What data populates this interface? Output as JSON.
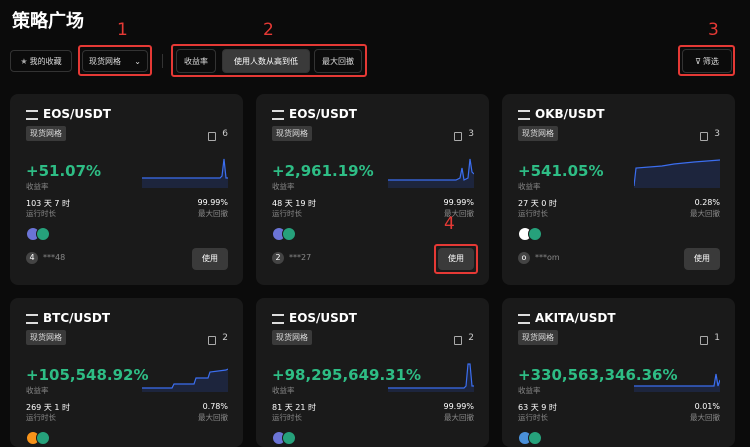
{
  "header": {
    "title": "策略广场"
  },
  "toolbar": {
    "favorites": "我的收藏",
    "dropdown": "现货网格",
    "sort_tabs": [
      "收益率",
      "使用人数从高到低",
      "最大回撤"
    ],
    "filter": "筛选"
  },
  "annotations": [
    "1",
    "2",
    "3",
    "4"
  ],
  "cards": [
    {
      "pair": "EOS/USDT",
      "tag": "现货网格",
      "copies": 6,
      "return": "+51.07%",
      "return_label": "收益率",
      "runtime": "103 天 7 时",
      "runtime_label": "运行时长",
      "drawdown": "99.99%",
      "drawdown_label": "最大回撤",
      "user_avatar": "4",
      "user": "***48",
      "button": "使用"
    },
    {
      "pair": "EOS/USDT",
      "tag": "现货网格",
      "copies": 3,
      "return": "+2,961.19%",
      "return_label": "收益率",
      "runtime": "48 天 19 时",
      "runtime_label": "运行时长",
      "drawdown": "99.99%",
      "drawdown_label": "最大回撤",
      "user_avatar": "2",
      "user": "***27",
      "button": "使用"
    },
    {
      "pair": "OKB/USDT",
      "tag": "现货网格",
      "copies": 3,
      "return": "+541.05%",
      "return_label": "收益率",
      "runtime": "27 天 0 时",
      "runtime_label": "运行时长",
      "drawdown": "0.28%",
      "drawdown_label": "最大回撤",
      "user_avatar": "o",
      "user": "***om",
      "button": "使用"
    },
    {
      "pair": "BTC/USDT",
      "tag": "现货网格",
      "copies": 2,
      "return": "+105,548.92%",
      "return_label": "收益率",
      "runtime": "269 天 1 时",
      "runtime_label": "运行时长",
      "drawdown": "0.78%",
      "drawdown_label": "最大回撤"
    },
    {
      "pair": "EOS/USDT",
      "tag": "现货网格",
      "copies": 2,
      "return": "+98,295,649.31%",
      "return_label": "收益率",
      "runtime": "81 天 21 时",
      "runtime_label": "运行时长",
      "drawdown": "99.99%",
      "drawdown_label": "最大回撤"
    },
    {
      "pair": "AKITA/USDT",
      "tag": "现货网格",
      "copies": 1,
      "return": "+330,563,346.36%",
      "return_label": "收益率",
      "runtime": "63 天 9 时",
      "runtime_label": "运行时长",
      "drawdown": "0.01%",
      "drawdown_label": "最大回撤"
    }
  ]
}
